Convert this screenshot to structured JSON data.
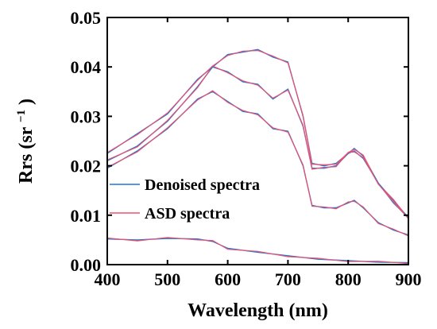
{
  "chart_data": {
    "type": "line",
    "title": "",
    "xlabel": "Wavelength (nm)",
    "ylabel_main": "Rrs (sr",
    "ylabel_sup": "−1",
    "ylabel_close": ")",
    "xlim": [
      400,
      900
    ],
    "ylim": [
      0,
      0.05
    ],
    "x_ticks": [
      400,
      500,
      600,
      700,
      800,
      900
    ],
    "x_tick_labels": [
      "400",
      "500",
      "600",
      "700",
      "800",
      "900"
    ],
    "y_ticks": [
      0,
      0.01,
      0.02,
      0.03,
      0.04,
      0.05
    ],
    "y_tick_labels": [
      "0.00",
      "0.01",
      "0.02",
      "0.03",
      "0.04",
      "0.05"
    ],
    "grid": false,
    "legend_position": "center-left",
    "legend": [
      {
        "label": "Denoised spectra",
        "color": "#1f77d4"
      },
      {
        "label": "ASD spectra",
        "color": "#f0506e"
      }
    ],
    "series": [
      {
        "x": [
          400,
          450,
          500,
          550,
          575,
          600,
          625,
          650,
          675,
          700,
          725,
          740,
          760,
          780,
          800,
          810,
          825,
          850,
          875,
          900
        ],
        "values": [
          0.021,
          0.024,
          0.029,
          0.036,
          0.04,
          0.0425,
          0.043,
          0.0435,
          0.042,
          0.041,
          0.03,
          0.0205,
          0.02,
          0.0205,
          0.0225,
          0.0235,
          0.022,
          0.0165,
          0.013,
          0.0095
        ]
      },
      {
        "x": [
          400,
          450,
          500,
          550,
          575,
          600,
          625,
          650,
          675,
          700,
          725,
          740,
          760,
          780,
          800,
          810,
          825,
          850,
          875,
          900
        ],
        "values": [
          0.0225,
          0.0265,
          0.0305,
          0.0375,
          0.04,
          0.039,
          0.037,
          0.0365,
          0.0335,
          0.0355,
          0.028,
          0.0195,
          0.0195,
          0.02,
          0.0225,
          0.023,
          0.0215,
          0.0165,
          0.0125,
          0.0095
        ]
      },
      {
        "x": [
          400,
          450,
          500,
          550,
          575,
          600,
          625,
          650,
          675,
          700,
          725,
          740,
          760,
          780,
          800,
          810,
          825,
          850,
          875,
          900
        ],
        "values": [
          0.0195,
          0.023,
          0.0275,
          0.0335,
          0.035,
          0.033,
          0.031,
          0.0305,
          0.0275,
          0.027,
          0.02,
          0.012,
          0.0115,
          0.0115,
          0.0125,
          0.013,
          0.0115,
          0.0085,
          0.007,
          0.006
        ]
      },
      {
        "x": [
          400,
          450,
          500,
          550,
          575,
          600,
          650,
          700,
          750,
          800,
          850,
          900
        ],
        "values": [
          0.0052,
          0.005,
          0.0053,
          0.0052,
          0.0047,
          0.0033,
          0.0025,
          0.0018,
          0.0011,
          0.0008,
          0.0005,
          0.0004
        ]
      }
    ]
  }
}
